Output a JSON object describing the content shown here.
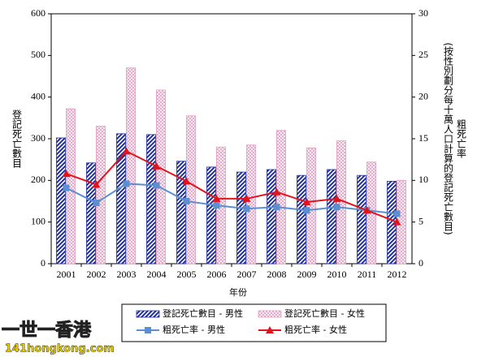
{
  "chart_data": {
    "type": "bar",
    "categories": [
      "2001",
      "2002",
      "2003",
      "2004",
      "2005",
      "2006",
      "2007",
      "2008",
      "2009",
      "2010",
      "2011",
      "2012"
    ],
    "x_label": "年份",
    "y_label": "登記死亡數目",
    "y2_label": "粗死亡率",
    "y2_sublabel": "(按性別劃分每十萬人口計算的登記死亡數目)",
    "ylim": [
      0,
      600
    ],
    "yticks": [
      0,
      100,
      200,
      300,
      400,
      500,
      600
    ],
    "y2lim": [
      0,
      30
    ],
    "y2ticks": [
      0,
      5,
      10,
      15,
      20,
      25,
      30
    ],
    "series": [
      {
        "name": "登記死亡數目 - 男性",
        "type": "bar",
        "color": "#1f2f9f",
        "values": [
          302,
          242,
          312,
          310,
          246,
          232,
          220,
          226,
          212,
          226,
          212,
          198
        ]
      },
      {
        "name": "登記死亡數目 - 女性",
        "type": "bar",
        "color": "#e39ac0",
        "values": [
          372,
          330,
          470,
          417,
          355,
          280,
          285,
          320,
          278,
          295,
          244,
          200
        ]
      },
      {
        "name": "粗死亡率 - 男性",
        "type": "line",
        "axis": "y2",
        "marker": "square",
        "color": "#5b8fd0",
        "values": [
          9.1,
          7.3,
          9.6,
          9.4,
          7.5,
          7.0,
          6.6,
          6.8,
          6.4,
          6.8,
          6.4,
          6.0
        ]
      },
      {
        "name": "粗死亡率 - 女性",
        "type": "line",
        "axis": "y2",
        "marker": "triangle",
        "color": "#e0141e",
        "values": [
          10.8,
          9.5,
          13.5,
          11.7,
          9.9,
          7.8,
          7.8,
          8.6,
          7.4,
          7.8,
          6.4,
          5.0
        ]
      }
    ]
  },
  "watermark": {
    "title": "一世一香港",
    "url": "141hongkong.com"
  }
}
